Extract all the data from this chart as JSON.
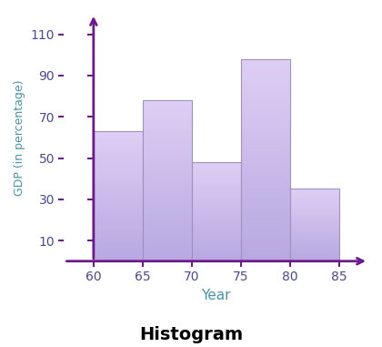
{
  "bin_edges": [
    60,
    65,
    70,
    75,
    80,
    85
  ],
  "bar_heights": [
    63,
    78,
    48,
    98,
    35
  ],
  "bar_color_top": "#ddd5f0",
  "bar_color_bottom": "#b8a8d8",
  "bar_edgecolor": "#a090c0",
  "axis_color": "#6b1a8a",
  "label_color": "#4a90a4",
  "tick_color": "#4a4a8a",
  "title": "Histogram",
  "xlabel": "Year",
  "ylabel": "GDP (in percentage)",
  "yticks": [
    10,
    30,
    50,
    70,
    90,
    110
  ],
  "xticks": [
    60,
    65,
    70,
    75,
    80,
    85
  ],
  "ylim": [
    0,
    120
  ],
  "xlim": [
    57,
    88
  ],
  "figsize": [
    4.2,
    3.81
  ],
  "dpi": 100
}
